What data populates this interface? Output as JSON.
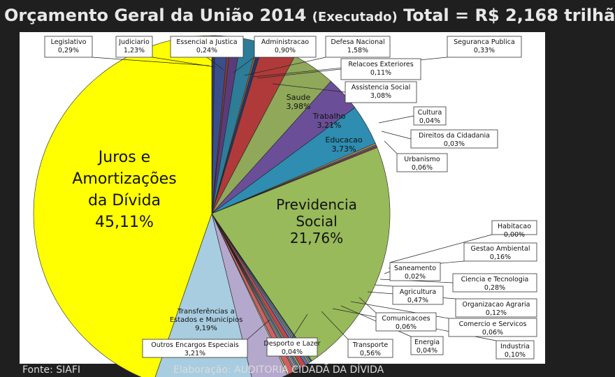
{
  "header": {
    "title_main": "Orçamento Geral da União 2014",
    "title_paren": "(Executado)",
    "title_total": "Total = R$ 2,168 trilhã"
  },
  "footer": {
    "source": "Fonte: SIAFI",
    "credit": "Elaboração: AUDITORIA CIDADÃ DA DÍVIDA"
  },
  "chart_data": {
    "type": "pie",
    "title": "Orçamento Geral da União 2014 (Executado) Total = R$ 2,168 trilhã",
    "unit": "%",
    "slices": [
      {
        "label": "Legislativo",
        "value_label": "0,29%",
        "value": 0.29,
        "color": "#2f3a73"
      },
      {
        "label": "Judiciário",
        "value_label": "1,23%",
        "value": 1.23,
        "color": "#3a4f8a"
      },
      {
        "label": "Essencial à Justiça",
        "value_label": "0,24%",
        "value": 0.24,
        "color": "#8b3a3a"
      },
      {
        "label": "Administração",
        "value_label": "0,90%",
        "value": 0.9,
        "color": "#5a3c7a"
      },
      {
        "label": "Defesa Nacional",
        "value_label": "1,58%",
        "value": 1.58,
        "color": "#2d7c98"
      },
      {
        "label": "Relações Exteriores",
        "value_label": "0,11%",
        "value": 0.11,
        "color": "#d2691e"
      },
      {
        "label": "Segurança Pública",
        "value_label": "0,33%",
        "value": 0.33,
        "color": "#1f3a6e"
      },
      {
        "label": "Assistência Social",
        "value_label": "3,08%",
        "value": 3.08,
        "color": "#b03a3a"
      },
      {
        "label": "Saúde",
        "value_label": "3,98%",
        "value": 3.98,
        "color": "#8fa85a"
      },
      {
        "label": "Trabalho",
        "value_label": "3,21%",
        "value": 3.21,
        "color": "#6a4f98"
      },
      {
        "label": "Educação",
        "value_label": "3,73%",
        "value": 3.73,
        "color": "#2e8db0"
      },
      {
        "label": "Cultura",
        "value_label": "0,04%",
        "value": 0.04,
        "color": "#e8a040"
      },
      {
        "label": "Direitos da Cidadania",
        "value_label": "0,03%",
        "value": 0.03,
        "color": "#4f6fa8"
      },
      {
        "label": "Urbanismo",
        "value_label": "0,06%",
        "value": 0.06,
        "color": "#a04040"
      },
      {
        "label": "Previdência Social",
        "value_label": "21,76%",
        "value": 21.76,
        "color": "#98ba5a"
      },
      {
        "label": "Habitação",
        "value_label": "0,00%",
        "value": 0.0,
        "color": "#7a5aa8"
      },
      {
        "label": "Gestão Ambiental",
        "value_label": "0,16%",
        "value": 0.16,
        "color": "#3aa0c0"
      },
      {
        "label": "Saneamento",
        "value_label": "0,02%",
        "value": 0.02,
        "color": "#f0a050"
      },
      {
        "label": "Ciência e Tecnologia",
        "value_label": "0,28%",
        "value": 0.28,
        "color": "#5a78b8"
      },
      {
        "label": "Agricultura",
        "value_label": "0,47%",
        "value": 0.47,
        "color": "#c04848"
      },
      {
        "label": "Organização Agrária",
        "value_label": "0,12%",
        "value": 0.12,
        "color": "#a8c878"
      },
      {
        "label": "Comunicações",
        "value_label": "0,06%",
        "value": 0.06,
        "color": "#8c6ab8"
      },
      {
        "label": "Comércio e Serviços",
        "value_label": "0,06%",
        "value": 0.06,
        "color": "#48b0d0"
      },
      {
        "label": "Energia",
        "value_label": "0,04%",
        "value": 0.04,
        "color": "#f0b060"
      },
      {
        "label": "Indústria",
        "value_label": "0,10%",
        "value": 0.1,
        "color": "#7890c8"
      },
      {
        "label": "Transporte",
        "value_label": "0,56%",
        "value": 0.56,
        "color": "#d06060"
      },
      {
        "label": "Desporto e Lazer",
        "value_label": "0,04%",
        "value": 0.04,
        "color": "#c0d890"
      },
      {
        "label": "Outros Encargos Especiais",
        "value_label": "3,21%",
        "value": 3.21,
        "color": "#b4a8cc"
      },
      {
        "label": "Transferências a Estados e Municípios",
        "value_label": "9,19%",
        "value": 9.19,
        "color": "#a8cce0"
      },
      {
        "label": "Juros e Amortizações da Dívida",
        "value_label": "45,11%",
        "value": 45.11,
        "color": "#ffff00"
      }
    ],
    "in_slice_labels": [
      {
        "slice": "Previdência Social",
        "lines": [
          "Previdencia",
          "Social",
          "21,76%"
        ]
      },
      {
        "slice": "Juros e Amortizações da Dívida",
        "lines": [
          "Juros e",
          "Amortizações",
          "da Dívida",
          "45,11%"
        ]
      },
      {
        "slice": "Saúde",
        "lines": [
          "Saude",
          "3,98%"
        ]
      },
      {
        "slice": "Trabalho",
        "lines": [
          "Trabalho",
          "3,21%"
        ]
      },
      {
        "slice": "Educação",
        "lines": [
          "Educacao",
          "3,73%"
        ]
      },
      {
        "slice": "Transferências a Estados e Municípios",
        "lines": [
          "Transferências a",
          "Estados e Municípios",
          "9,19%"
        ]
      }
    ],
    "callouts": [
      {
        "slice": "Legislativo",
        "lines": [
          "Legislativo",
          "0,29%"
        ]
      },
      {
        "slice": "Judiciário",
        "lines": [
          "Judiciario",
          "1,23%"
        ]
      },
      {
        "slice": "Essencial à Justiça",
        "lines": [
          "Essencial a Justica",
          "0,24%"
        ]
      },
      {
        "slice": "Administração",
        "lines": [
          "Administracao",
          "0,90%"
        ]
      },
      {
        "slice": "Defesa Nacional",
        "lines": [
          "Defesa Nacional",
          "1,58%"
        ]
      },
      {
        "slice": "Segurança Pública",
        "lines": [
          "Seguranca Publica",
          "0,33%"
        ]
      },
      {
        "slice": "Relações Exteriores",
        "lines": [
          "Relacoes Exteriores",
          "0,11%"
        ]
      },
      {
        "slice": "Assistência Social",
        "lines": [
          "Assistencia Social",
          "3,08%"
        ]
      },
      {
        "slice": "Cultura",
        "lines": [
          "Cultura",
          "0,04%"
        ]
      },
      {
        "slice": "Direitos da Cidadania",
        "lines": [
          "Direitos da Cidadania",
          "0,03%"
        ]
      },
      {
        "slice": "Urbanismo",
        "lines": [
          "Urbanismo",
          "0,06%"
        ]
      },
      {
        "slice": "Habitação",
        "lines": [
          "Habitacao",
          "0,00%"
        ]
      },
      {
        "slice": "Gestão Ambiental",
        "lines": [
          "Gestao Ambiental",
          "0,16%"
        ]
      },
      {
        "slice": "Saneamento",
        "lines": [
          "Saneamento",
          "0,02%"
        ]
      },
      {
        "slice": "Ciência e Tecnologia",
        "lines": [
          "Ciencia e Tecnologia",
          "0,28%"
        ]
      },
      {
        "slice": "Agricultura",
        "lines": [
          "Agricultura",
          "0,47%"
        ]
      },
      {
        "slice": "Organização Agrária",
        "lines": [
          "Organizacao Agraria",
          "0,12%"
        ]
      },
      {
        "slice": "Comunicações",
        "lines": [
          "Comunicacoes",
          "0,06%"
        ]
      },
      {
        "slice": "Comércio e Serviços",
        "lines": [
          "Comercio e Servicos",
          "0,06%"
        ]
      },
      {
        "slice": "Energia",
        "lines": [
          "Energia",
          "0,04%"
        ]
      },
      {
        "slice": "Indústria",
        "lines": [
          "Industria",
          "0,10%"
        ]
      },
      {
        "slice": "Transporte",
        "lines": [
          "Transporte",
          "0,56%"
        ]
      },
      {
        "slice": "Desporto e Lazer",
        "lines": [
          "Desporto e Lazer",
          "0,04%"
        ]
      },
      {
        "slice": "Outros Encargos Especiais",
        "lines": [
          "Outros Encargos Especiais",
          "3,21%"
        ]
      }
    ],
    "legend": "none"
  }
}
